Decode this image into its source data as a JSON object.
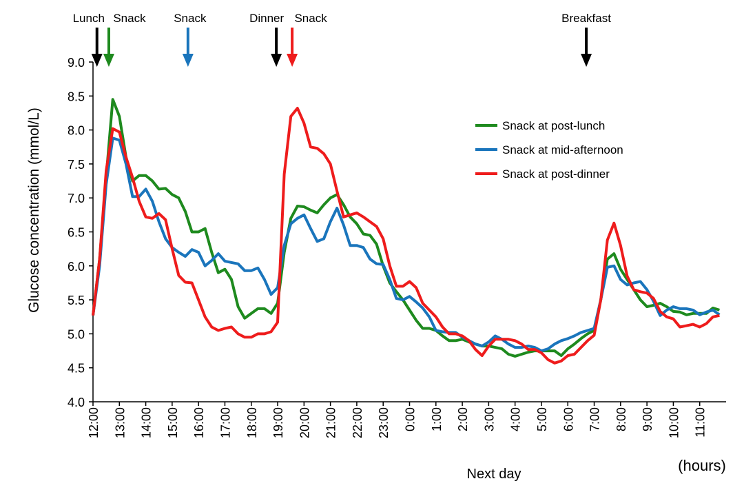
{
  "chart_data": {
    "type": "line",
    "y_label": "Glucose concentration (mmol/L)",
    "x_label": "Next day",
    "x_unit_label": "(hours)",
    "xlim": [
      0,
      24
    ],
    "ylim": [
      4.0,
      9.0
    ],
    "yticks": [
      {
        "value": 4.0,
        "label": "4.0"
      },
      {
        "value": 4.5,
        "label": "4.5"
      },
      {
        "value": 5.0,
        "label": "5.0"
      },
      {
        "value": 5.5,
        "label": "5.5"
      },
      {
        "value": 6.0,
        "label": "6.0"
      },
      {
        "value": 6.5,
        "label": "6.5"
      },
      {
        "value": 7.0,
        "label": "7.0"
      },
      {
        "value": 7.5,
        "label": "7.5"
      },
      {
        "value": 8.0,
        "label": "8.0"
      },
      {
        "value": 8.5,
        "label": "8.5"
      },
      {
        "value": 9.0,
        "label": "9.0"
      }
    ],
    "xticks": [
      {
        "value": 0,
        "label": "12:00"
      },
      {
        "value": 1,
        "label": "13:00"
      },
      {
        "value": 2,
        "label": "14:00"
      },
      {
        "value": 3,
        "label": "15:00"
      },
      {
        "value": 4,
        "label": "16:00"
      },
      {
        "value": 5,
        "label": "17:00"
      },
      {
        "value": 6,
        "label": "18:00"
      },
      {
        "value": 7,
        "label": "19:00"
      },
      {
        "value": 8,
        "label": "20:00"
      },
      {
        "value": 9,
        "label": "21:00"
      },
      {
        "value": 10,
        "label": "22:00"
      },
      {
        "value": 11,
        "label": "23:00"
      },
      {
        "value": 12,
        "label": "0:00"
      },
      {
        "value": 13,
        "label": "1:00"
      },
      {
        "value": 14,
        "label": "2:00"
      },
      {
        "value": 15,
        "label": "3:00"
      },
      {
        "value": 16,
        "label": "4:00"
      },
      {
        "value": 17,
        "label": "5:00"
      },
      {
        "value": 18,
        "label": "6:00"
      },
      {
        "value": 19,
        "label": "7:00"
      },
      {
        "value": 20,
        "label": "8:00"
      },
      {
        "value": 21,
        "label": "9:00"
      },
      {
        "value": 22,
        "label": "10:00"
      },
      {
        "value": 23,
        "label": "11:00"
      }
    ],
    "x": [
      0,
      0.25,
      0.5,
      0.75,
      1,
      1.25,
      1.5,
      1.75,
      2,
      2.25,
      2.5,
      2.75,
      3,
      3.25,
      3.5,
      3.75,
      4,
      4.25,
      4.5,
      4.75,
      5,
      5.25,
      5.5,
      5.75,
      6,
      6.25,
      6.5,
      6.75,
      7,
      7.25,
      7.5,
      7.75,
      8,
      8.25,
      8.5,
      8.75,
      9,
      9.25,
      9.5,
      9.75,
      10,
      10.25,
      10.5,
      10.75,
      11,
      11.25,
      11.5,
      11.75,
      12,
      12.25,
      12.5,
      12.75,
      13,
      13.25,
      13.5,
      13.75,
      14,
      14.25,
      14.5,
      14.75,
      15,
      15.25,
      15.5,
      15.75,
      16,
      16.25,
      16.5,
      16.75,
      17,
      17.25,
      17.5,
      17.75,
      18,
      18.25,
      18.5,
      18.75,
      19,
      19.25,
      19.5,
      19.75,
      20,
      20.25,
      20.5,
      20.75,
      21,
      21.25,
      21.5,
      21.75,
      22,
      22.25,
      22.5,
      22.75,
      23,
      23.25,
      23.5,
      23.75
    ],
    "series": [
      {
        "name": "Snack at post-lunch",
        "color": "#1e8a1e",
        "values": [
          5.27,
          6.1,
          7.3,
          8.45,
          8.2,
          7.6,
          7.25,
          7.33,
          7.33,
          7.25,
          7.13,
          7.14,
          7.05,
          7.0,
          6.8,
          6.5,
          6.5,
          6.55,
          6.2,
          5.9,
          5.95,
          5.8,
          5.4,
          5.23,
          5.3,
          5.37,
          5.37,
          5.3,
          5.45,
          6.2,
          6.7,
          6.88,
          6.87,
          6.82,
          6.78,
          6.9,
          7.0,
          7.05,
          6.9,
          6.72,
          6.62,
          6.47,
          6.45,
          6.32,
          6.0,
          5.75,
          5.62,
          5.5,
          5.35,
          5.2,
          5.08,
          5.08,
          5.05,
          4.97,
          4.9,
          4.9,
          4.92,
          4.88,
          4.85,
          4.82,
          4.82,
          4.8,
          4.78,
          4.7,
          4.67,
          4.7,
          4.73,
          4.75,
          4.75,
          4.75,
          4.75,
          4.68,
          4.78,
          4.85,
          4.93,
          5.0,
          5.05,
          5.5,
          6.1,
          6.18,
          5.95,
          5.8,
          5.65,
          5.5,
          5.4,
          5.42,
          5.45,
          5.4,
          5.33,
          5.32,
          5.28,
          5.3,
          5.3,
          5.3,
          5.38,
          5.35
        ]
      },
      {
        "name": "Snack at mid-afternoon",
        "color": "#1a75bc",
        "values": [
          5.27,
          6.0,
          7.2,
          7.88,
          7.85,
          7.5,
          7.02,
          7.02,
          7.13,
          6.95,
          6.65,
          6.4,
          6.27,
          6.2,
          6.14,
          6.24,
          6.2,
          6.0,
          6.08,
          6.18,
          6.07,
          6.05,
          6.03,
          5.93,
          5.93,
          5.97,
          5.8,
          5.58,
          5.68,
          6.3,
          6.62,
          6.7,
          6.75,
          6.55,
          6.36,
          6.4,
          6.65,
          6.85,
          6.6,
          6.3,
          6.3,
          6.27,
          6.1,
          6.03,
          6.02,
          5.8,
          5.52,
          5.5,
          5.55,
          5.47,
          5.38,
          5.25,
          5.05,
          5.03,
          5.02,
          5.02,
          4.95,
          4.9,
          4.85,
          4.82,
          4.88,
          4.97,
          4.92,
          4.85,
          4.8,
          4.8,
          4.82,
          4.8,
          4.75,
          4.78,
          4.85,
          4.9,
          4.93,
          4.97,
          5.02,
          5.05,
          5.08,
          5.5,
          5.98,
          6.0,
          5.8,
          5.72,
          5.75,
          5.77,
          5.65,
          5.48,
          5.27,
          5.35,
          5.4,
          5.37,
          5.37,
          5.35,
          5.28,
          5.32,
          5.35,
          5.28
        ]
      },
      {
        "name": "Snack at post-dinner",
        "color": "#ee1c1c",
        "values": [
          5.27,
          6.1,
          7.4,
          8.02,
          7.97,
          7.6,
          7.3,
          6.95,
          6.72,
          6.7,
          6.77,
          6.68,
          6.25,
          5.86,
          5.76,
          5.75,
          5.5,
          5.25,
          5.1,
          5.05,
          5.08,
          5.1,
          5.0,
          4.95,
          4.95,
          5.0,
          5.0,
          5.03,
          5.17,
          7.35,
          8.2,
          8.32,
          8.1,
          7.75,
          7.73,
          7.65,
          7.5,
          7.1,
          6.72,
          6.75,
          6.78,
          6.72,
          6.65,
          6.58,
          6.4,
          6.0,
          5.7,
          5.7,
          5.77,
          5.68,
          5.45,
          5.35,
          5.25,
          5.1,
          5.0,
          5.0,
          4.97,
          4.9,
          4.77,
          4.68,
          4.82,
          4.92,
          4.92,
          4.92,
          4.9,
          4.85,
          4.77,
          4.77,
          4.72,
          4.62,
          4.57,
          4.6,
          4.68,
          4.7,
          4.8,
          4.9,
          4.98,
          5.5,
          6.38,
          6.63,
          6.3,
          5.85,
          5.65,
          5.62,
          5.6,
          5.52,
          5.33,
          5.25,
          5.22,
          5.1,
          5.12,
          5.14,
          5.1,
          5.15,
          5.25,
          5.27
        ]
      }
    ],
    "annotations": [
      {
        "text": "Lunch",
        "x": 0.15,
        "color": "#000000"
      },
      {
        "text": "Snack",
        "x": 0.6,
        "color": "#1e8a1e"
      },
      {
        "text": "Snack",
        "x": 3.6,
        "color": "#1a75bc"
      },
      {
        "text": "Dinner",
        "x": 6.95,
        "color": "#000000"
      },
      {
        "text": "Snack",
        "x": 7.55,
        "color": "#ee1c1c"
      },
      {
        "text": "Breakfast",
        "x": 18.7,
        "color": "#000000"
      }
    ],
    "legend": "upper right"
  }
}
